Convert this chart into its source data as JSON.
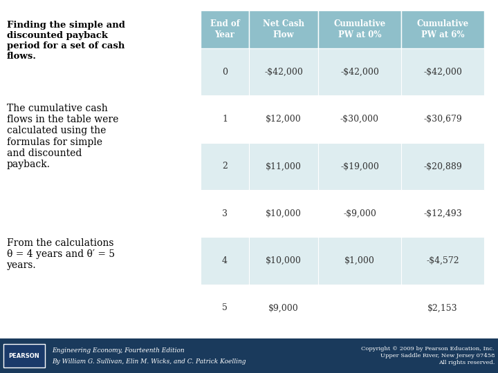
{
  "title_text": "Finding the simple and\ndiscounted payback\nperiod for a set of cash\nflows.",
  "body_text1": "The cumulative cash\nflows in the table were\ncalculated using the\nformulas for simple\nand discounted\npayback.",
  "body_text2": "From the calculations\nθ = 4 years and θ′ = 5\nyears.",
  "col_headers": [
    "End of\nYear",
    "Net Cash\nFlow",
    "Cumulative\nPW at 0%",
    "Cumulative\nPW at 6%"
  ],
  "rows": [
    [
      "0",
      "-$42,000",
      "-$42,000",
      "-$42,000"
    ],
    [
      "1",
      "$12,000",
      "-$30,000",
      "-$30,679"
    ],
    [
      "2",
      "$11,000",
      "-$19,000",
      "-$20,889"
    ],
    [
      "3",
      "$10,000",
      "-$9,000",
      "-$12,493"
    ],
    [
      "4",
      "$10,000",
      "$1,000",
      "-$4,572"
    ],
    [
      "5",
      "$9,000",
      "",
      "$2,153"
    ]
  ],
  "header_bg": "#8fbfca",
  "row_bg_even": "#deedf0",
  "row_bg_odd": "#ffffff",
  "header_text_color": "#ffffff",
  "cell_text_color": "#333333",
  "left_text_color": "#000000",
  "footer_bg": "#1a3a5c",
  "footer_pearson_bg": "#1a3a5c",
  "background_color": "#ffffff",
  "footer_text": "Engineering Economy, Fourteenth Edition\nBy William G. Sullivan, Elin M. Wicks, and C. Patrick Koelling",
  "copyright_text": "Copyright © 2009 by Pearson Education, Inc.\nUpper Saddle River, New Jersey 07458\nAll rights reserved."
}
